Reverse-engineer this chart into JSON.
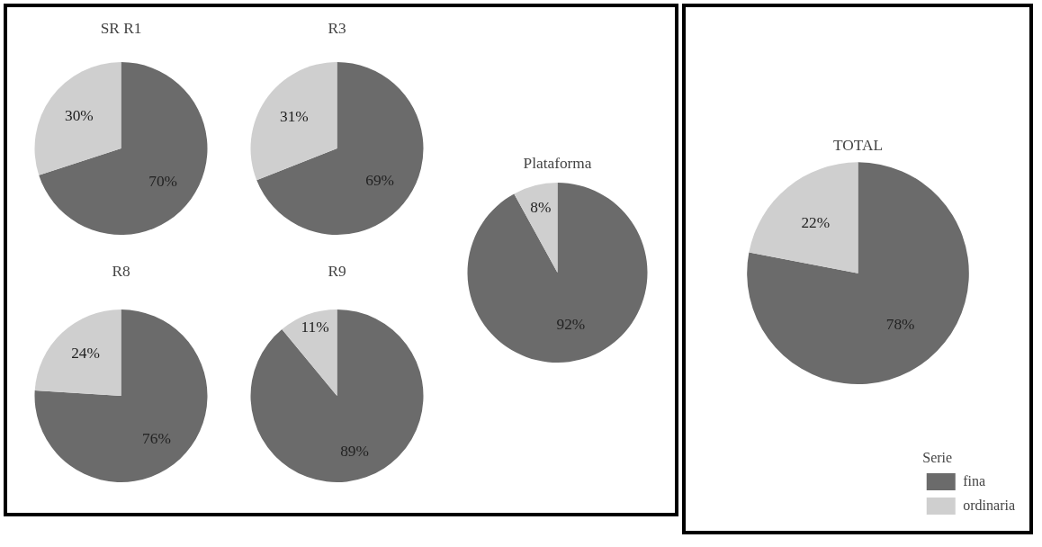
{
  "chart_data": {
    "type": "pie",
    "categories": [
      "fina",
      "ordinaria"
    ],
    "colors": [
      "#6b6b6b",
      "#cfcfcf"
    ],
    "legend": "bottom right",
    "legend_title": "Serie",
    "series": [
      {
        "name": "SR R1",
        "values": [
          70,
          30
        ],
        "value_labels": [
          "70%",
          "30%"
        ]
      },
      {
        "name": "R3",
        "values": [
          69,
          31
        ],
        "value_labels": [
          "69%",
          "31%"
        ]
      },
      {
        "name": "R8",
        "values": [
          76,
          24
        ],
        "value_labels": [
          "76%",
          "24%"
        ]
      },
      {
        "name": "R9",
        "values": [
          89,
          11
        ],
        "value_labels": [
          "89%",
          "11%"
        ]
      },
      {
        "name": "Plataforma",
        "values": [
          92,
          8
        ],
        "value_labels": [
          "92%",
          "8%"
        ]
      },
      {
        "name": "TOTAL",
        "values": [
          78,
          22
        ],
        "value_labels": [
          "78%",
          "22%"
        ]
      }
    ]
  }
}
